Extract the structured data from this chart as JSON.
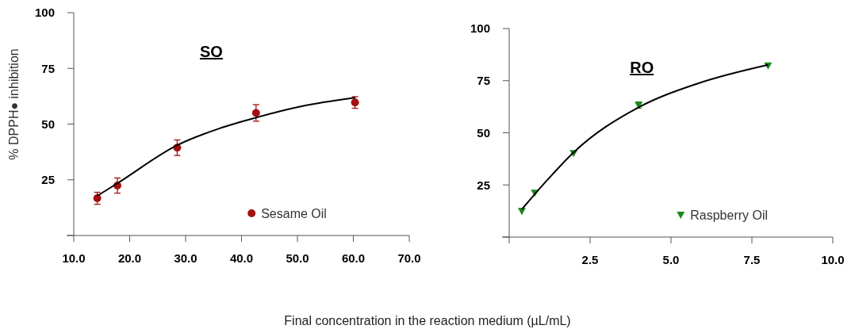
{
  "chart_data": [
    {
      "type": "scatter",
      "title": "SO",
      "ylabel": "% DPPH● inhibition",
      "xlabel": "Final concentration in the reaction medium (µL/mL)",
      "xlim": [
        10,
        70
      ],
      "ylim": [
        0,
        100
      ],
      "xticks": [
        {
          "value": 10,
          "label": "10.0"
        },
        {
          "value": 20,
          "label": "20.0"
        },
        {
          "value": 30,
          "label": "30.0"
        },
        {
          "value": 40,
          "label": "40.0"
        },
        {
          "value": 50,
          "label": "50.0"
        },
        {
          "value": 60,
          "label": "60.0"
        },
        {
          "value": 70,
          "label": "70.0"
        }
      ],
      "yticks": [
        {
          "value": 0,
          "label": null
        },
        25,
        50,
        75,
        100
      ],
      "grid": false,
      "legend": "bottom right",
      "series": [
        {
          "name": "Sesame Oil",
          "color": "#a50f0f",
          "marker": "circle",
          "x": [
            14.2,
            17.8,
            28.5,
            42.6,
            60.3
          ],
          "values": [
            16.7,
            22.4,
            39.4,
            55,
            59.7
          ],
          "errors": [
            2.7,
            3.4,
            3.5,
            3.7,
            2.6
          ]
        },
        {
          "type": "line",
          "color": "#000000",
          "line_style": "solid",
          "x": [
            14.2,
            17.8,
            28.5,
            36,
            42.6,
            50.6,
            60.3
          ],
          "values": [
            17.8,
            23.4,
            40.5,
            48,
            52.9,
            57.9,
            61.8
          ]
        }
      ]
    },
    {
      "type": "scatter",
      "title": "RO",
      "xlim": [
        0,
        10
      ],
      "ylim": [
        0,
        100
      ],
      "xticks": [
        {
          "value": 0,
          "label": null
        },
        2.5,
        {
          "value": 5,
          "label": "5.0"
        },
        7.5,
        {
          "value": 10,
          "label": "10.0"
        }
      ],
      "yticks": [
        {
          "value": 0,
          "label": null
        },
        25,
        50,
        75,
        100
      ],
      "grid": false,
      "legend": "bottom right",
      "series": [
        {
          "name": "Raspberry Oil",
          "color": "#1a8a1a",
          "marker": "triangle",
          "x": [
            0.39,
            0.79,
            1.99,
            4.0,
            8.0
          ],
          "values": [
            12.5,
            21.2,
            40.2,
            63.3,
            82.2
          ],
          "errors": [
            null,
            null,
            null,
            1.5,
            null
          ]
        },
        {
          "type": "line",
          "color": "#000000",
          "line_style": "solid",
          "x": [
            0.39,
            1.18,
            1.99,
            4.0,
            5.8,
            8.0
          ],
          "values": [
            13.3,
            27.4,
            40.6,
            62.2,
            73.5,
            82.6
          ]
        }
      ]
    }
  ]
}
